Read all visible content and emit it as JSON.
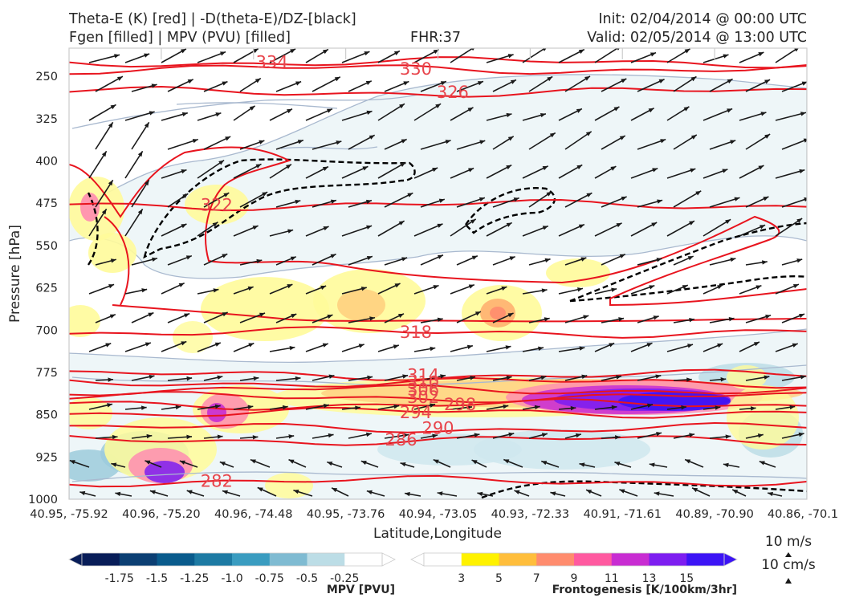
{
  "header": {
    "title_line1": "Theta-E (K) [red] | -D(theta-E)/DZ-[black]",
    "title_line2": "Fgen [filled] | MPV (PVU) [filled]",
    "fhr": "FHR:37",
    "init": "Init: 02/04/2014 @ 00:00 UTC",
    "valid": "Valid: 02/05/2014 @ 13:00 UTC"
  },
  "chart_data": {
    "type": "cross-section",
    "xlabel": "Latitude,Longitude",
    "ylabel": "Pressure [hPa]",
    "ylim": [
      1000,
      200
    ],
    "y_ticks": [
      1000,
      925,
      850,
      775,
      700,
      625,
      550,
      475,
      400,
      325,
      250
    ],
    "x_ticks": [
      "40.95, -75.92",
      "40.96, -75.20",
      "40.96, -74.48",
      "40.95, -73.76",
      "40.94, -73.05",
      "40.93, -72.33",
      "40.91, -71.61",
      "40.89, -70.90",
      "40.86, -70.1"
    ],
    "theta_e_contours": [
      {
        "label": "334",
        "level": 225,
        "pos": 0.275
      },
      {
        "label": "330",
        "level": 237,
        "pos": 0.47
      },
      {
        "label": "326",
        "level": 278,
        "pos": 0.52
      },
      {
        "label": "322",
        "level": 478,
        "pos": 0.2
      },
      {
        "label": "318",
        "level": 704,
        "pos": 0.47
      },
      {
        "label": "314",
        "level": 780,
        "pos": 0.48
      },
      {
        "label": "310",
        "level": 793,
        "pos": 0.48
      },
      {
        "label": "306",
        "level": 806,
        "pos": 0.48
      },
      {
        "label": "302",
        "level": 819,
        "pos": 0.48
      },
      {
        "label": "298",
        "level": 832,
        "pos": 0.53
      },
      {
        "label": "294",
        "level": 846,
        "pos": 0.47
      },
      {
        "label": "290",
        "level": 874,
        "pos": 0.5
      },
      {
        "label": "286",
        "level": 895,
        "pos": 0.45
      },
      {
        "label": "282",
        "level": 968,
        "pos": 0.2
      }
    ],
    "wind_reference": {
      "horizontal": "10 m/s",
      "vertical": "10 cm/s"
    },
    "colorbars": [
      {
        "label": "MPV [PVU]",
        "ticks": [
          "-1.75",
          "-1.5",
          "-1.25",
          "-1.0",
          "-0.75",
          "-0.5",
          "-0.25"
        ],
        "colors": [
          "#081d58",
          "#0c3f73",
          "#0a5b8c",
          "#1d7aa3",
          "#3a9cc0",
          "#7fbbd2",
          "#bcdde6",
          "#ffffff"
        ]
      },
      {
        "label": "Frontogenesis [K/100km/3hr]",
        "ticks": [
          "3",
          "5",
          "7",
          "9",
          "11",
          "13",
          "15"
        ],
        "colors": [
          "#ffffff",
          "#fff200",
          "#ffbe3c",
          "#ff8c6e",
          "#ff5aa0",
          "#c82dd2",
          "#7d1ef0",
          "#3c14f5"
        ]
      }
    ]
  }
}
